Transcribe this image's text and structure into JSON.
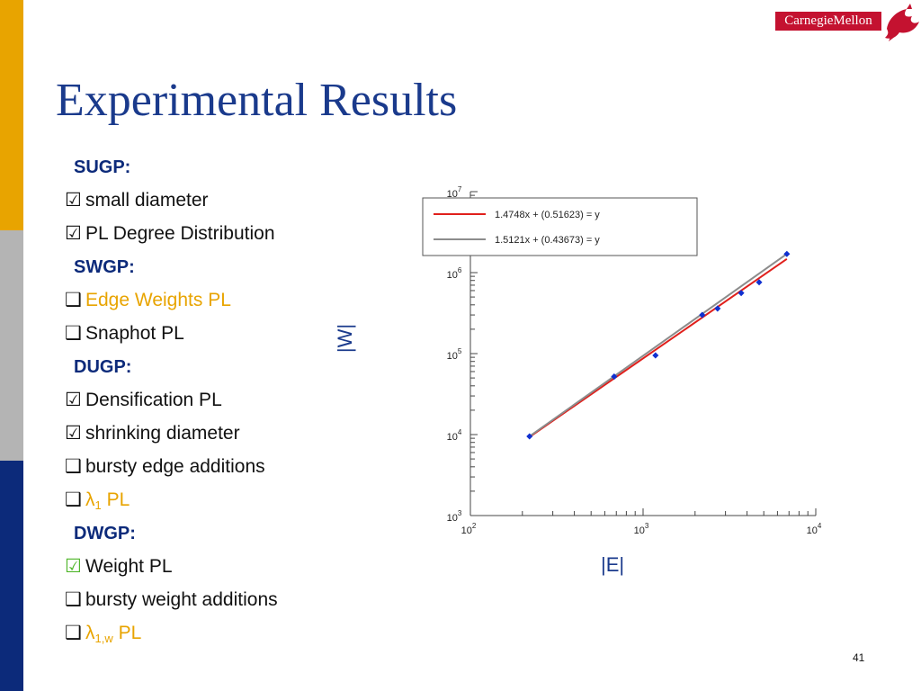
{
  "logo": {
    "text": "CarnegieMellon"
  },
  "title": "Experimental Results",
  "checklist": [
    {
      "type": "header",
      "text": "SUGP:"
    },
    {
      "type": "item",
      "state": "checked",
      "text": "small diameter"
    },
    {
      "type": "item",
      "state": "checked",
      "text": "PL Degree Distribution"
    },
    {
      "type": "header",
      "text": "SWGP:"
    },
    {
      "type": "item",
      "state": "unchecked",
      "text": "Edge Weights PL",
      "highlight": true
    },
    {
      "type": "item",
      "state": "unchecked",
      "text": "Snaphot PL"
    },
    {
      "type": "header",
      "text": "DUGP:"
    },
    {
      "type": "item",
      "state": "checked",
      "text": "Densification PL"
    },
    {
      "type": "item",
      "state": "checked",
      "text": "shrinking diameter"
    },
    {
      "type": "item",
      "state": "unchecked",
      "text": "bursty edge additions"
    },
    {
      "type": "item",
      "state": "unchecked",
      "text": "λ",
      "sub": "1",
      "suffix": " PL",
      "highlight": true
    },
    {
      "type": "header",
      "text": "DWGP:"
    },
    {
      "type": "item",
      "state": "checked-green",
      "text": "Weight PL"
    },
    {
      "type": "item",
      "state": "unchecked",
      "text": "bursty weight additions"
    },
    {
      "type": "item",
      "state": "unchecked",
      "text": "λ",
      "sub": "1,w",
      "suffix": " PL",
      "highlight": true
    }
  ],
  "page_number": "41",
  "colors": {
    "title": "#1a3a8c",
    "highlight": "#e8a400",
    "fit1": "#e0201c",
    "fit2": "#8c8c8c",
    "points": "#1030d0",
    "green_check": "#4db528"
  },
  "chart_data": {
    "type": "scatter",
    "x_scale": "log",
    "y_scale": "log",
    "xlim": [
      100,
      10000
    ],
    "ylim": [
      1000,
      10000000
    ],
    "xlabel": "|E|",
    "ylabel": "|W|",
    "x_ticks": [
      {
        "base": "10",
        "exp": "2"
      },
      {
        "base": "10",
        "exp": "3"
      },
      {
        "base": "10",
        "exp": "4"
      }
    ],
    "y_ticks": [
      {
        "base": "10",
        "exp": "3"
      },
      {
        "base": "10",
        "exp": "4"
      },
      {
        "base": "10",
        "exp": "5"
      },
      {
        "base": "10",
        "exp": "6"
      },
      {
        "base": "10",
        "exp": "7"
      }
    ],
    "points": {
      "x": [
        220,
        680,
        1180,
        2200,
        2700,
        3700,
        4700,
        6800
      ],
      "y": [
        9500,
        52000,
        95000,
        300000,
        360000,
        560000,
        760000,
        1700000
      ]
    },
    "fits": [
      {
        "label": "1.4748x + (0.51623) = y",
        "slope": 1.4748,
        "intercept": 0.51623,
        "color": "#e0201c",
        "x_range": [
          220,
          6800
        ]
      },
      {
        "label": "1.5121x + (0.43673) = y",
        "slope": 1.5121,
        "intercept": 0.43673,
        "color": "#8c8c8c",
        "x_range": [
          220,
          6800
        ]
      }
    ],
    "legend_position": "top"
  }
}
